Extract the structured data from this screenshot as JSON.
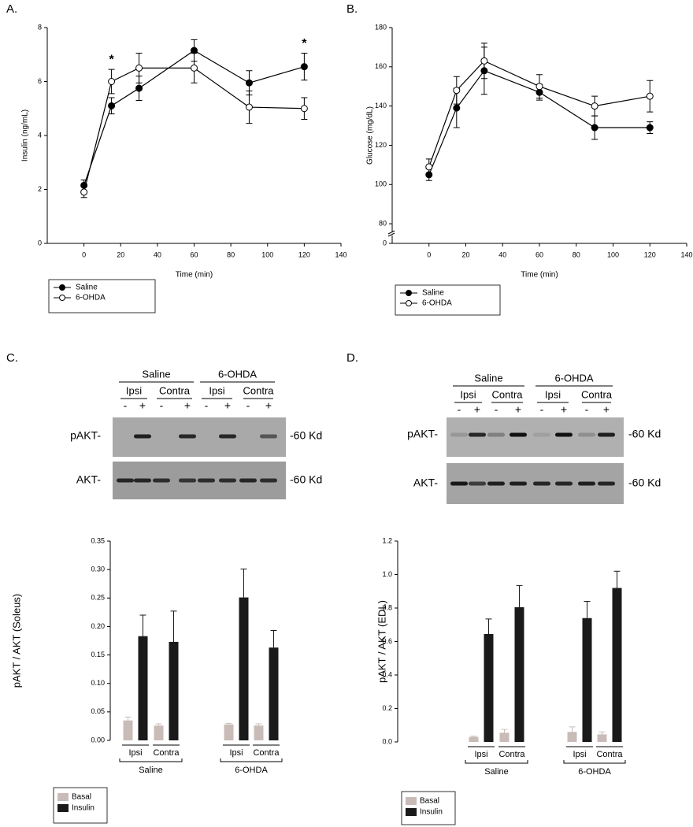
{
  "chart_data": [
    {
      "type": "line",
      "panel_label": "A.",
      "xlabel": "Time (min)",
      "ylabel": "Insulin (ng/mL)",
      "x": [
        0,
        15,
        30,
        60,
        90,
        120
      ],
      "xlim": [
        -20,
        140
      ],
      "xticks": [
        0,
        20,
        40,
        60,
        80,
        100,
        120,
        140
      ],
      "ylim": [
        0,
        8
      ],
      "yticks": [
        0,
        2,
        4,
        6,
        8
      ],
      "series": [
        {
          "name": "Saline",
          "color": "#000000",
          "marker_fill": "#000000",
          "values": [
            2.15,
            5.1,
            5.75,
            7.15,
            5.95,
            6.55
          ],
          "errors": [
            0.2,
            0.3,
            0.45,
            0.4,
            0.45,
            0.5
          ]
        },
        {
          "name": "6-OHDA",
          "color": "#000000",
          "marker_fill": "#ffffff",
          "values": [
            1.9,
            6.0,
            6.5,
            6.5,
            5.05,
            5.0
          ],
          "errors": [
            0.2,
            0.45,
            0.55,
            0.55,
            0.6,
            0.4
          ]
        }
      ],
      "annotations": [
        {
          "text": "*",
          "x": 15
        },
        {
          "text": "*",
          "x": 120
        }
      ]
    },
    {
      "type": "line",
      "panel_label": "B.",
      "xlabel": "Time (min)",
      "ylabel": "Glucose (mg/dL)",
      "x": [
        0,
        15,
        30,
        60,
        90,
        120
      ],
      "xlim": [
        -20,
        140
      ],
      "xticks": [
        0,
        20,
        40,
        60,
        80,
        100,
        120,
        140
      ],
      "ylim": [
        70,
        180
      ],
      "yticks": [
        {
          "value": 70,
          "label": "0"
        },
        80,
        100,
        120,
        140,
        160,
        180
      ],
      "axis_break": true,
      "series": [
        {
          "name": "Saline",
          "color": "#000000",
          "marker_fill": "#000000",
          "values": [
            105,
            139,
            158,
            147,
            129,
            129
          ],
          "errors": [
            3,
            10,
            12,
            4,
            6,
            3
          ]
        },
        {
          "name": "6-OHDA",
          "color": "#000000",
          "marker_fill": "#ffffff",
          "values": [
            109,
            148,
            163,
            150,
            140,
            145
          ],
          "errors": [
            4,
            7,
            9,
            6,
            5,
            8
          ]
        }
      ]
    },
    {
      "type": "bar",
      "ylabel": "pAKT / AKT (Soleus)",
      "categories": [
        "Ipsi",
        "Contra",
        "Ipsi",
        "Contra"
      ],
      "groups": [
        "Saline",
        "6-OHDA"
      ],
      "ylim": [
        0,
        0.35
      ],
      "yticks": [
        {
          "value": 0,
          "label": "0.00"
        },
        0.05,
        {
          "value": 0.1,
          "label": "0.10"
        },
        0.15,
        {
          "value": 0.2,
          "label": "0.20"
        },
        0.25,
        {
          "value": 0.3,
          "label": "0.30"
        },
        0.35
      ],
      "series": [
        {
          "name": "Basal",
          "color": "#c9bcb8",
          "values": [
            0.035,
            0.026,
            0.028,
            0.026
          ],
          "errors": [
            0.006,
            0.003,
            0.002,
            0.003
          ]
        },
        {
          "name": "Insulin",
          "color": "#1a1a1a",
          "values": [
            0.183,
            0.173,
            0.251,
            0.163
          ],
          "errors": [
            0.037,
            0.054,
            0.05,
            0.03
          ]
        }
      ]
    },
    {
      "type": "bar",
      "ylabel": "pAKT / AKT (EDL)",
      "categories": [
        "Ipsi",
        "Contra",
        "Ipsi",
        "Contra"
      ],
      "groups": [
        "Saline",
        "6-OHDA"
      ],
      "ylim": [
        0,
        1.2
      ],
      "yticks": [
        {
          "value": 0,
          "label": "0.0"
        },
        0.2,
        0.4,
        0.6,
        0.8,
        {
          "value": 1,
          "label": "1.0"
        },
        1.2
      ],
      "series": [
        {
          "name": "Basal",
          "color": "#c9bcb8",
          "values": [
            0.03,
            0.055,
            0.06,
            0.045
          ],
          "errors": [
            0.005,
            0.02,
            0.03,
            0.015
          ]
        },
        {
          "name": "Insulin",
          "color": "#1a1a1a",
          "values": [
            0.645,
            0.805,
            0.74,
            0.92
          ],
          "errors": [
            0.09,
            0.13,
            0.1,
            0.1
          ]
        }
      ]
    }
  ],
  "blots": [
    {
      "panel_label": "C.",
      "groups": [
        "Saline",
        "6-OHDA"
      ],
      "subgroups": [
        "Ipsi",
        "Contra",
        "Ipsi",
        "Contra"
      ],
      "treatments": [
        "-",
        "+",
        "-",
        "+",
        "-",
        "+",
        "-",
        "+"
      ],
      "rows": [
        {
          "label": "pAKT-",
          "size": "-60 Kd"
        },
        {
          "label": "AKT-",
          "size": "-60 Kd"
        }
      ]
    },
    {
      "panel_label": "D.",
      "groups": [
        "Saline",
        "6-OHDA"
      ],
      "subgroups": [
        "Ipsi",
        "Contra",
        "Ipsi",
        "Contra"
      ],
      "treatments": [
        "-",
        "+",
        "-",
        "+",
        "-",
        "+",
        "-",
        "+"
      ],
      "rows": [
        {
          "label": "pAKT-",
          "size": "-60 Kd"
        },
        {
          "label": "AKT-",
          "size": "-60 Kd"
        }
      ]
    }
  ]
}
